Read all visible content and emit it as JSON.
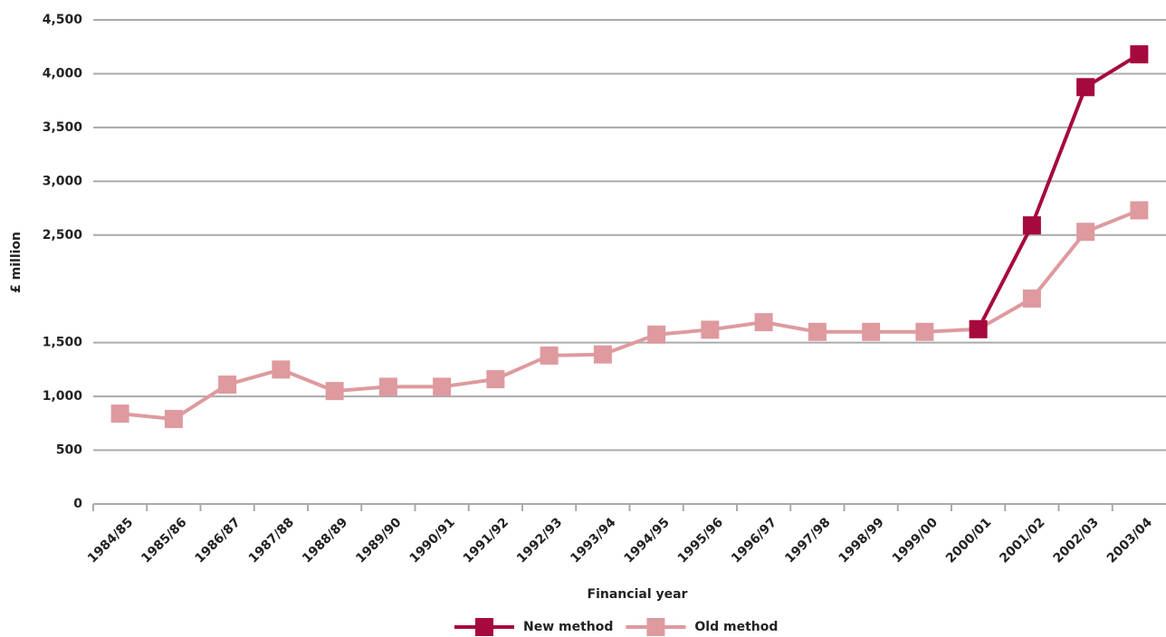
{
  "chart_data": {
    "type": "line",
    "x_label": "Financial year",
    "y_label": "£ million",
    "categories": [
      "1984/85",
      "1985/86",
      "1986/87",
      "1987/88",
      "1988/89",
      "1989/90",
      "1990/91",
      "1991/92",
      "1992/93",
      "1993/94",
      "1994/95",
      "1995/96",
      "1996/97",
      "1997/98",
      "1998/99",
      "1999/00",
      "2000/01",
      "2001/02",
      "2002/03",
      "2003/04"
    ],
    "series": [
      {
        "name": "New method",
        "color": "#a6093d",
        "values": [
          null,
          null,
          null,
          null,
          null,
          null,
          null,
          null,
          null,
          null,
          null,
          null,
          null,
          null,
          null,
          null,
          1625,
          2590,
          3875,
          4180
        ]
      },
      {
        "name": "Old method",
        "color": "#de9a9e",
        "values": [
          840,
          790,
          1110,
          1250,
          1050,
          1090,
          1090,
          1160,
          1380,
          1390,
          1575,
          1620,
          1690,
          1600,
          1600,
          1600,
          1625,
          1910,
          2530,
          2730
        ]
      }
    ],
    "ylim": [
      0,
      4500
    ],
    "yticks": [
      0,
      500,
      {
        "value": 1000,
        "label": "1,000"
      },
      {
        "value": 1500,
        "label": "1,500"
      },
      {
        "value": 2500,
        "label": "2,500"
      },
      {
        "value": 3000,
        "label": "3,000"
      },
      {
        "value": 3500,
        "label": "3,500"
      },
      {
        "value": 4000,
        "label": "4,000"
      },
      {
        "value": 4500,
        "label": "4,500"
      }
    ],
    "grid": true,
    "legend": "bottom"
  }
}
